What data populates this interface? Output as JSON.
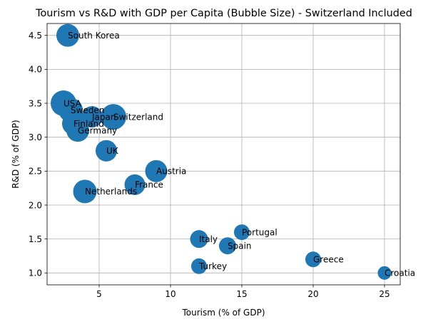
{
  "chart_data": {
    "type": "scatter",
    "title": "Tourism vs R&D with GDP per Capita (Bubble Size) - Switzerland Included",
    "xlabel": "Tourism (% of GDP)",
    "ylabel": "R&D (% of GDP)",
    "xlim": [
      1.35,
      26.1
    ],
    "ylim": [
      0.825,
      4.675
    ],
    "xticks": [
      5,
      10,
      15,
      20,
      25
    ],
    "yticks": [
      1.0,
      1.5,
      2.0,
      2.5,
      3.0,
      3.5,
      4.0,
      4.5
    ],
    "xtick_labels": [
      "5",
      "10",
      "15",
      "20",
      "25"
    ],
    "ytick_labels": [
      "1.0",
      "1.5",
      "2.0",
      "2.5",
      "3.0",
      "3.5",
      "4.0",
      "4.5"
    ],
    "grid": true,
    "bubble_color": "#1f77b4",
    "points": [
      {
        "label": "South Korea",
        "x": 2.8,
        "y": 4.5,
        "size": 16
      },
      {
        "label": "USA",
        "x": 2.5,
        "y": 3.5,
        "size": 18
      },
      {
        "label": "Sweden",
        "x": 3.0,
        "y": 3.4,
        "size": 17
      },
      {
        "label": "Japan",
        "x": 4.5,
        "y": 3.3,
        "size": 15
      },
      {
        "label": "Switzerland",
        "x": 6.0,
        "y": 3.3,
        "size": 18
      },
      {
        "label": "Finland",
        "x": 3.2,
        "y": 3.2,
        "size": 16
      },
      {
        "label": "Germany",
        "x": 3.5,
        "y": 3.1,
        "size": 16
      },
      {
        "label": "UK",
        "x": 5.5,
        "y": 2.8,
        "size": 15
      },
      {
        "label": "Austria",
        "x": 9.0,
        "y": 2.5,
        "size": 15.5
      },
      {
        "label": "France",
        "x": 7.5,
        "y": 2.3,
        "size": 14.5
      },
      {
        "label": "Netherlands",
        "x": 4.0,
        "y": 2.2,
        "size": 16.5
      },
      {
        "label": "Portugal",
        "x": 15.0,
        "y": 1.6,
        "size": 11
      },
      {
        "label": "Italy",
        "x": 12.0,
        "y": 1.5,
        "size": 12.5
      },
      {
        "label": "Spain",
        "x": 14.0,
        "y": 1.4,
        "size": 12
      },
      {
        "label": "Turkey",
        "x": 12.0,
        "y": 1.1,
        "size": 11
      },
      {
        "label": "Greece",
        "x": 20.0,
        "y": 1.2,
        "size": 11
      },
      {
        "label": "Croatia",
        "x": 25.0,
        "y": 1.0,
        "size": 9.5
      }
    ]
  }
}
